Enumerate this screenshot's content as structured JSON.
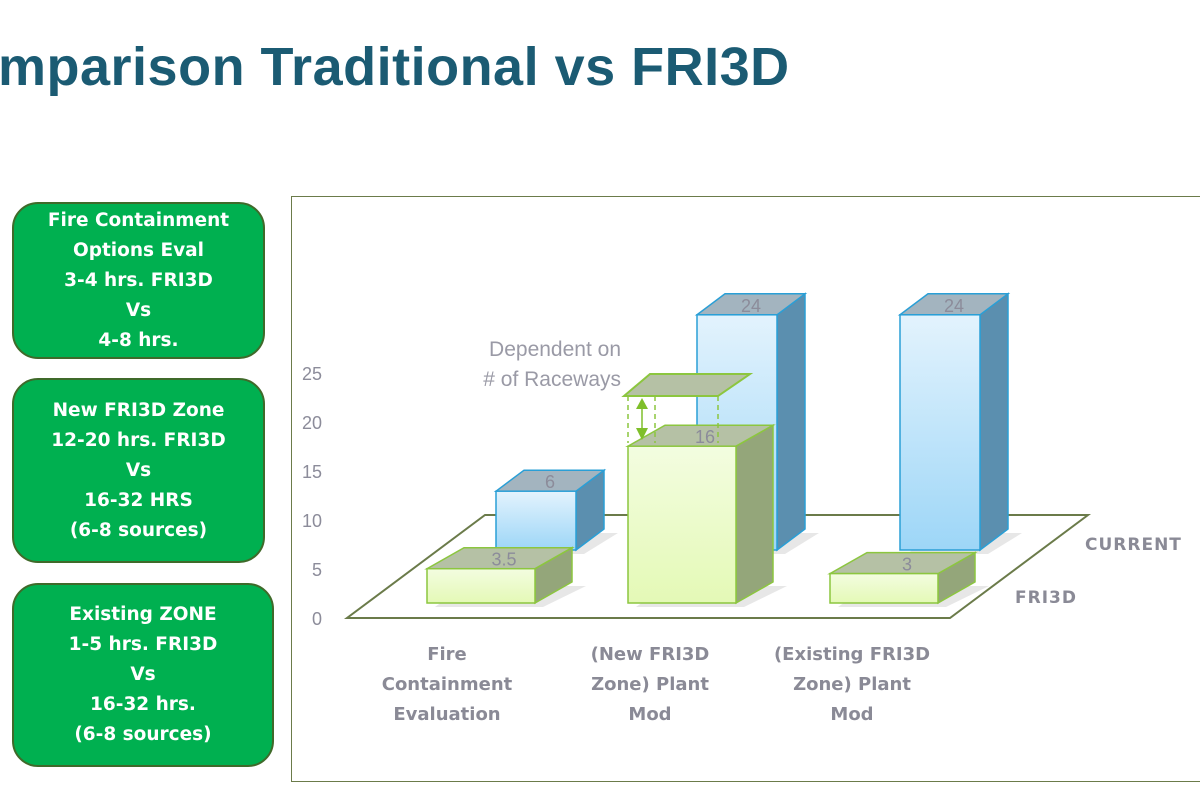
{
  "title": "mparison Traditional vs FRI3D",
  "info_boxes": [
    {
      "lines": [
        "Fire Containment",
        "Options Eval",
        "3-4 hrs. FRI3D",
        "Vs",
        "4-8 hrs."
      ]
    },
    {
      "lines": [
        "New FRI3D Zone",
        "12-20 hrs. FRI3D",
        "Vs",
        "16-32 HRS",
        "(6-8 sources)"
      ]
    },
    {
      "lines": [
        "Existing ZONE",
        "1-5 hrs. FRI3D",
        "Vs",
        "16-32 hrs.",
        "(6-8 sources)"
      ]
    }
  ],
  "chart_data": {
    "type": "bar",
    "style": "3d-clustered",
    "categories": [
      [
        "Fire",
        "Containment",
        "Evaluation"
      ],
      [
        "(New FRI3D",
        "Zone) Plant",
        "Mod"
      ],
      [
        "(Existing FRI3D",
        "Zone) Plant",
        "Mod"
      ]
    ],
    "series": [
      {
        "name": "CURRENT",
        "values": [
          6,
          24,
          24
        ],
        "color": "#9dd6f7",
        "edge": "#2a9fd6"
      },
      {
        "name": "FRI3D",
        "values": [
          3.5,
          16,
          3
        ],
        "color": "#e4f9b6",
        "edge": "#8cc63f"
      }
    ],
    "value_labels": [
      [
        "6",
        "24",
        "24"
      ],
      [
        "3.5",
        "16",
        "3"
      ]
    ],
    "yticks": [
      "0",
      "5",
      "10",
      "15",
      "20",
      "25"
    ],
    "ylim": [
      0,
      25
    ],
    "annotation": {
      "lines": [
        "Dependent on",
        "# of Raceways"
      ],
      "category_index": 1,
      "range_top": 24
    },
    "grid": false,
    "legend": "series labels on floor right"
  }
}
